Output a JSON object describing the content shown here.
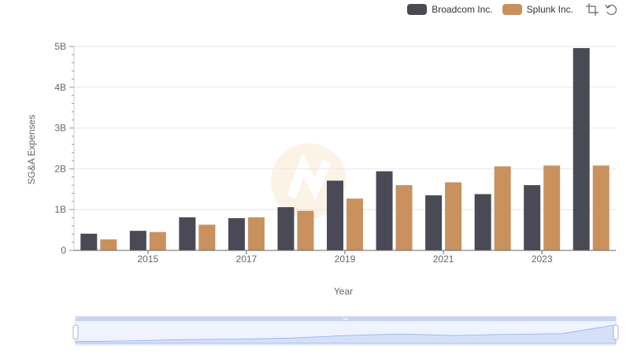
{
  "chart_data": {
    "type": "bar",
    "title": "",
    "xlabel": "Year",
    "ylabel": "SG&A Expenses",
    "x": [
      2014,
      2015,
      2016,
      2017,
      2018,
      2019,
      2020,
      2021,
      2022,
      2023,
      2024
    ],
    "x_tick_labels": [
      "2015",
      "2017",
      "2019",
      "2021",
      "2023"
    ],
    "y_tick_labels": [
      "0",
      "1B",
      "2B",
      "3B",
      "4B",
      "5B"
    ],
    "ylim": [
      0,
      5000000000
    ],
    "grid": true,
    "legend_position": "top-right",
    "series": [
      {
        "name": "Broadcom Inc.",
        "color": "#4a4a56",
        "values": [
          410000000,
          480000000,
          810000000,
          790000000,
          1060000000,
          1710000000,
          1940000000,
          1350000000,
          1380000000,
          1600000000,
          4960000000
        ]
      },
      {
        "name": "Splunk Inc.",
        "color": "#c9915e",
        "values": [
          270000000,
          450000000,
          630000000,
          810000000,
          970000000,
          1270000000,
          1600000000,
          1670000000,
          2060000000,
          2080000000,
          2080000000
        ]
      }
    ]
  },
  "toolbox": {
    "zoom_icon": "zoom-icon",
    "restore_icon": "restore-icon"
  },
  "datazoom": {
    "start_percent": 0,
    "end_percent": 100
  }
}
